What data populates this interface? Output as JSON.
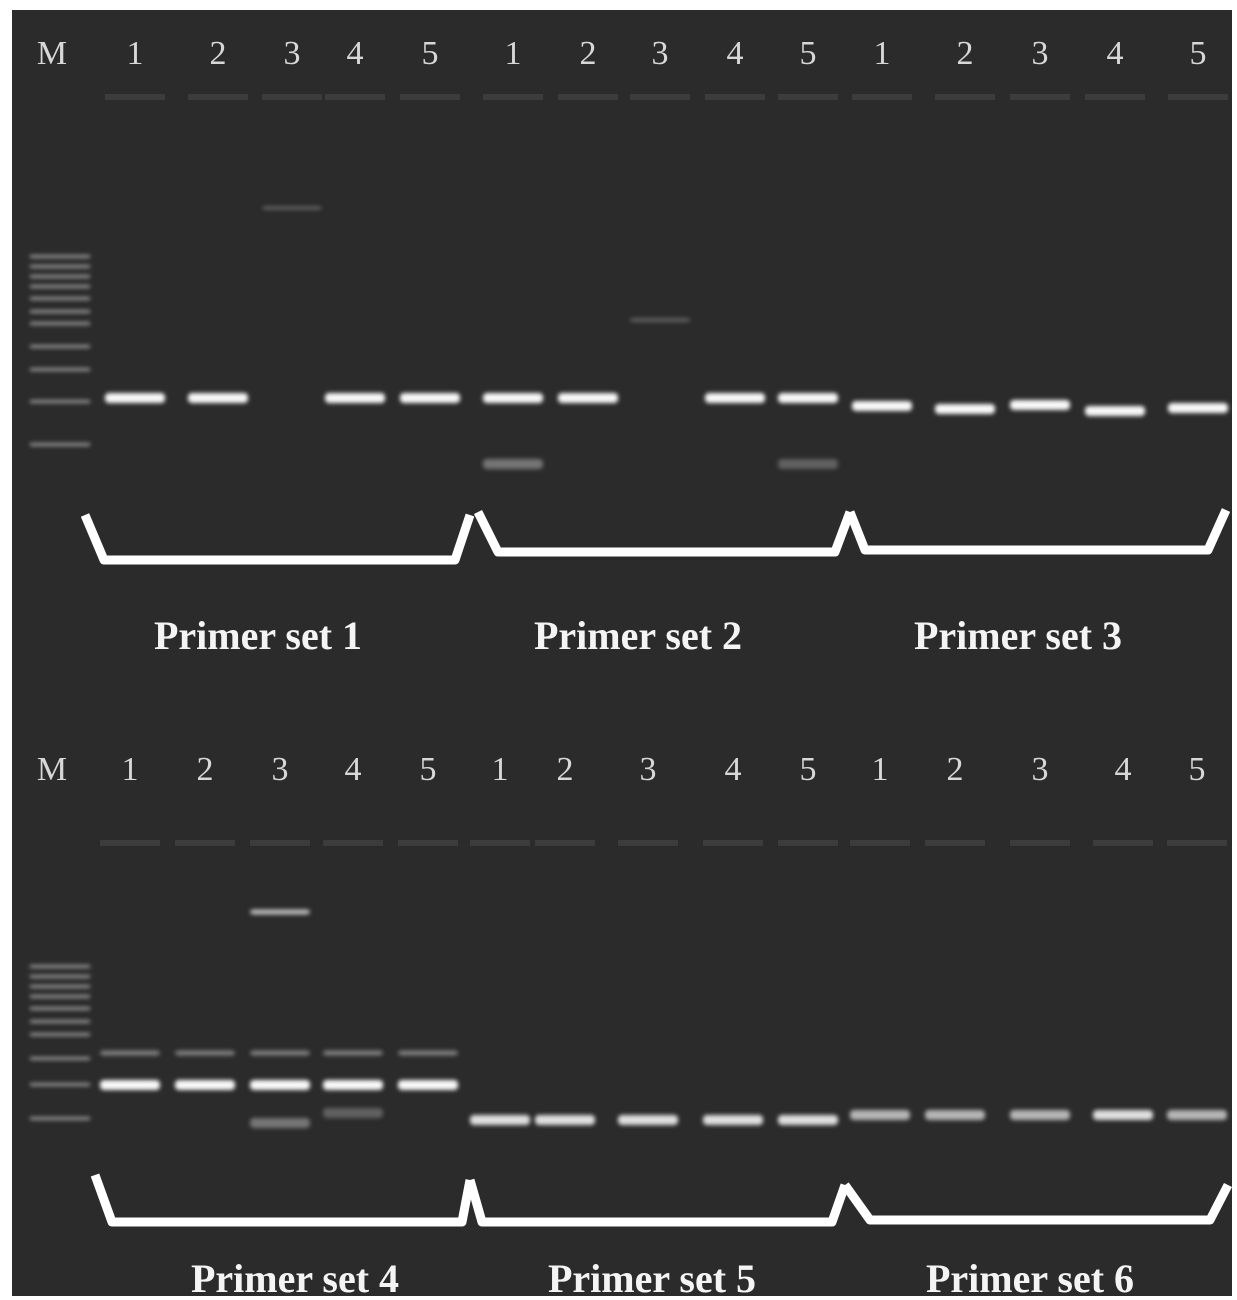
{
  "panels": [
    {
      "lanes": [
        "M",
        "1",
        "2",
        "3",
        "4",
        "5",
        "1",
        "2",
        "3",
        "4",
        "5",
        "1",
        "2",
        "3",
        "4",
        "5"
      ],
      "groups": [
        "Primer set 1",
        "Primer set 2",
        "Primer set 3"
      ]
    },
    {
      "lanes": [
        "M",
        "1",
        "2",
        "3",
        "4",
        "5",
        "1",
        "2",
        "3",
        "4",
        "5",
        "1",
        "2",
        "3",
        "4",
        "5"
      ],
      "groups": [
        "Primer set 4",
        "Primer set 5",
        "Primer set 6"
      ]
    }
  ]
}
